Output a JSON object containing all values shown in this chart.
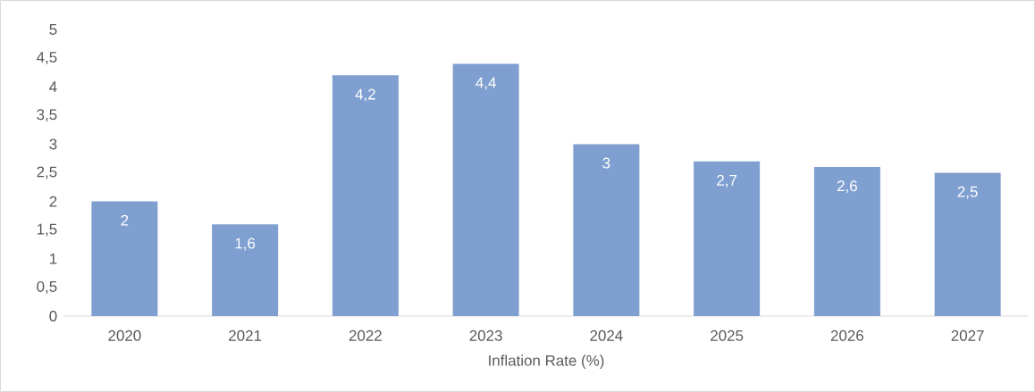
{
  "chart_data": {
    "type": "bar",
    "xlabel": "Inflation Rate (%)",
    "categories": [
      "2020",
      "2021",
      "2022",
      "2023",
      "2024",
      "2025",
      "2026",
      "2027"
    ],
    "values": [
      2,
      1.6,
      4.2,
      4.4,
      3,
      2.7,
      2.6,
      2.5
    ],
    "value_labels": [
      "2",
      "1,6",
      "4,2",
      "4,4",
      "3",
      "2,7",
      "2,6",
      "2,5"
    ],
    "color": "#7f9fd0",
    "ylim": [
      0,
      5
    ],
    "yticks": [
      0,
      {
        "value": 0.5,
        "label": "0,5"
      },
      1,
      {
        "value": 1.5,
        "label": "1,5"
      },
      2,
      {
        "value": 2.5,
        "label": "2,5"
      },
      3,
      {
        "value": 3.5,
        "label": "3,5"
      },
      4,
      {
        "value": 4.5,
        "label": "4,5"
      },
      5
    ]
  }
}
